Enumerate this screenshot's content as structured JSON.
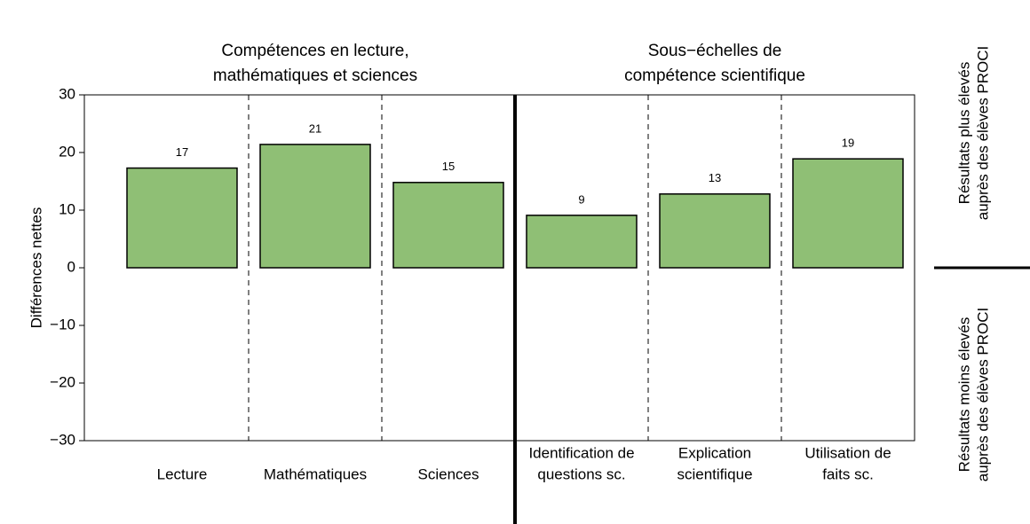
{
  "chart_data": {
    "type": "bar",
    "ylabel": "Différences nettes",
    "groups": [
      {
        "title": [
          "Compétences en lecture,",
          "mathématiques et sciences"
        ]
      },
      {
        "title": [
          "Sous−échelles de",
          "compétence scientifique"
        ]
      }
    ],
    "annotations": [
      [
        "Résultats plus élevés",
        "auprès des élèves PROCI"
      ],
      [
        "Résultats moins élevés",
        "auprès des élèves PROCI"
      ]
    ],
    "categories": [
      [
        "Lecture"
      ],
      [
        "Mathématiques"
      ],
      [
        "Sciences"
      ],
      [
        "Identification de",
        "questions sc."
      ],
      [
        "Explication",
        "scientifique"
      ],
      [
        "Utilisation de",
        "faits sc."
      ]
    ],
    "values": [
      17.3,
      21.4,
      14.8,
      9.1,
      12.8,
      18.9
    ],
    "value_labels": [
      "17",
      "21",
      "15",
      "9",
      "13",
      "19"
    ],
    "color": "#8fbf75",
    "ylim": [
      -30,
      30
    ],
    "yticks": [
      {
        "value": -30,
        "label": "−30"
      },
      {
        "value": -20,
        "label": "−20"
      },
      {
        "value": -10,
        "label": "−10"
      },
      0,
      10,
      20,
      30
    ]
  }
}
